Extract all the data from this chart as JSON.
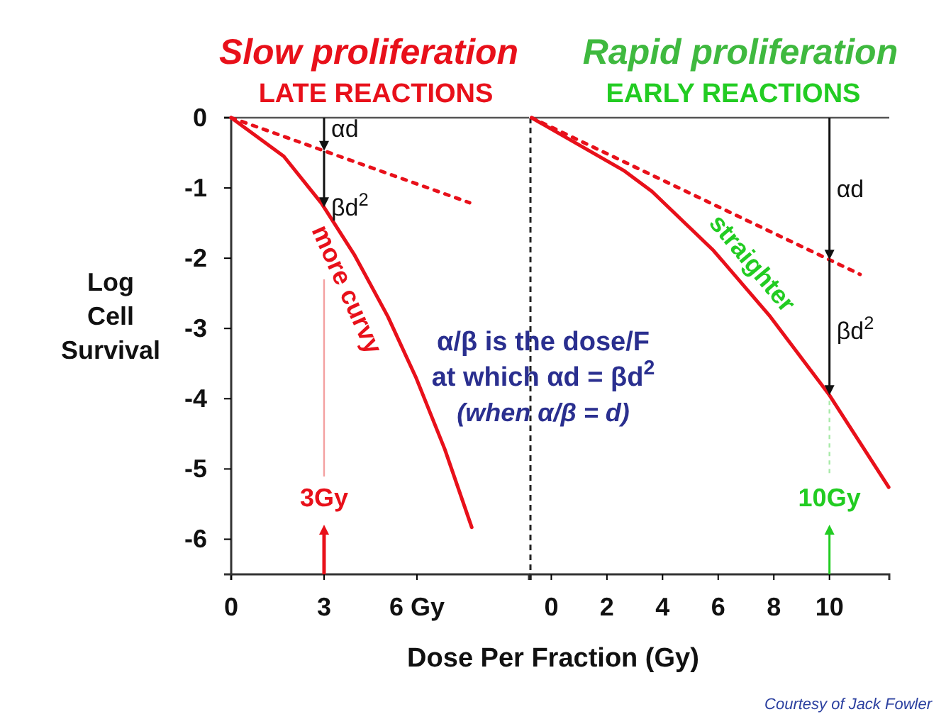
{
  "chart_data": [
    {
      "type": "line",
      "title": "Slow proliferation",
      "subtitle": "LATE REACTIONS",
      "ylabel": "Log Cell Survival",
      "xlabel": "Dose Per Fraction (Gy)",
      "xlim": [
        0,
        9.62
      ],
      "xticks": [
        0,
        3,
        {
          "value": 6,
          "label": "6 Gy"
        }
      ],
      "ylim": [
        -6.5,
        0
      ],
      "yticks": [
        0,
        -1,
        -2,
        -3,
        -4,
        -5,
        -6
      ],
      "marker": "none",
      "ref_lines": [
        {
          "axis": "x",
          "value": 3,
          "label": "3Gy"
        }
      ],
      "series": [
        {
          "color": "#e8101a",
          "line_style": "solid",
          "x": [
            0,
            1.7,
            2.92,
            3.99,
            5.06,
            5.98,
            6.9,
            7.77
          ],
          "values": [
            0,
            -0.55,
            -1.22,
            -1.96,
            -2.83,
            -3.71,
            -4.72,
            -5.83
          ]
        },
        {
          "color": "#e8101a",
          "line_style": "dotted",
          "x": [
            0,
            7.7
          ],
          "values": [
            0,
            -1.21
          ]
        }
      ],
      "annotations": [
        "αd",
        "βd$^{2}$",
        {
          "text": "more curvy",
          "x": 4.5,
          "y": -2.37
        }
      ]
    },
    {
      "type": "line",
      "title": "Rapid proliferation",
      "subtitle": "EARLY REACTIONS",
      "xlim": [
        -0.75,
        12.15
      ],
      "xticks": [
        0,
        2,
        4,
        6,
        8,
        10
      ],
      "ylim": [
        -6.5,
        0
      ],
      "tick_labels": "x",
      "marker": "none",
      "ref_lines": [
        {
          "axis": "x",
          "value": 10,
          "label": "10Gy"
        }
      ],
      "series": [
        {
          "color": "#e8101a",
          "line_style": "solid",
          "x": [
            -0.71,
            2.6,
            3.62,
            5.83,
            7.87,
            10.0,
            12.13
          ],
          "values": [
            0,
            -0.75,
            -1.05,
            -1.89,
            -2.83,
            -3.95,
            -5.26
          ]
        },
        {
          "color": "#e8101a",
          "line_style": "dotted",
          "x": [
            -0.71,
            11.1
          ],
          "values": [
            0,
            -2.23
          ]
        }
      ],
      "annotations": [
        "αd",
        "βd$^{2}$",
        {
          "text": "straighter",
          "x": 7,
          "y": -2.43
        },
        "α/β is the dose/F",
        "at which αd =  βd$^{2}$",
        "(when α/β = d)",
        "Courtesy of Jack Fowler"
      ]
    }
  ]
}
